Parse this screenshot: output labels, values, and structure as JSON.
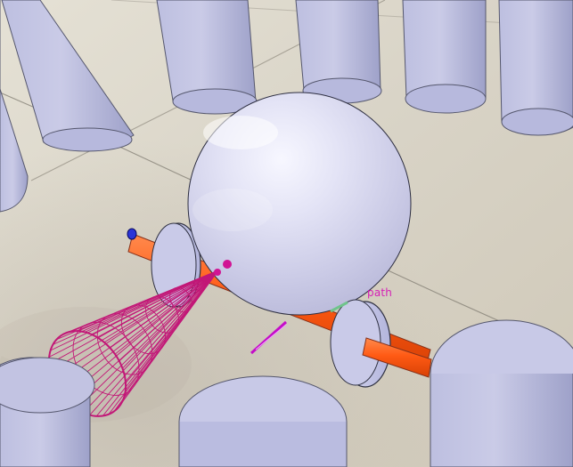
{
  "viewport": {
    "type": "3d-simulation-view",
    "scene_objects": [
      "floor-plane",
      "pillar-cylinder",
      "robot-sphere-body",
      "wheel-axle",
      "left-wheel",
      "right-wheel",
      "sensor-cone-wireframe",
      "path-marker",
      "front-marker"
    ],
    "labels": {
      "path_label": "path"
    },
    "colors": {
      "floor": "#d8d3c6",
      "floor_shadow": "#b8b2a4",
      "cylinder": "#c5c6e0",
      "cylinder_dark": "#9ea0c6",
      "sphere": "#d9d9ef",
      "axle": "#ff5a14",
      "wheel": "#c7c8e5",
      "cone": "#c21777",
      "path_marker": "#c40cc8",
      "front_marker": "#2b35d8"
    }
  }
}
